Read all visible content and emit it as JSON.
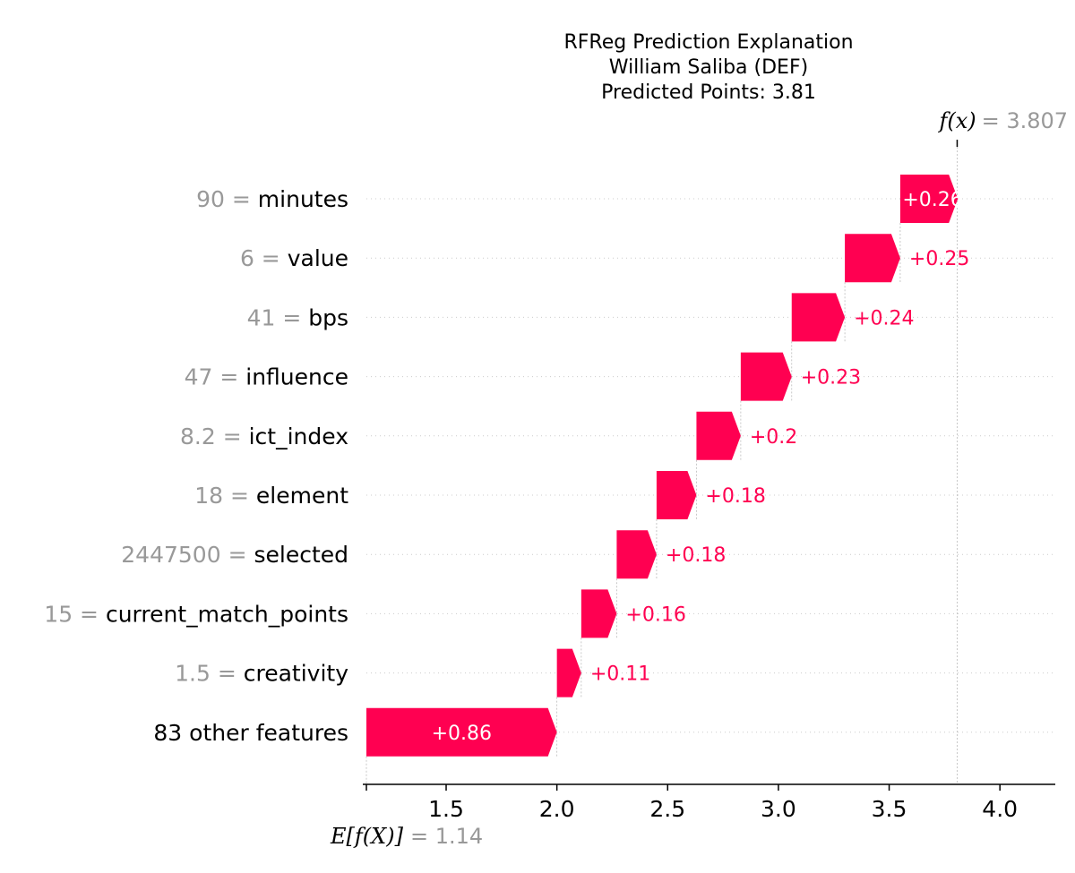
{
  "chart_data": {
    "type": "waterfall",
    "title_lines": [
      "RFReg Prediction Explanation",
      "William Saliba (DEF)",
      "Predicted Points: 3.81"
    ],
    "base_value": 1.14,
    "base_label": "E[f(X)]",
    "base_value_text": "= 1.14",
    "output_value": 3.807,
    "output_label": "f(x)",
    "output_value_text": "= 3.807",
    "xlim": [
      1.14,
      4.25
    ],
    "x_ticks": [
      1.5,
      2.0,
      2.5,
      3.0,
      3.5,
      4.0
    ],
    "x_tick_labels": [
      "1.5",
      "2.0",
      "2.5",
      "3.0",
      "3.5",
      "4.0"
    ],
    "positive_color": "#ff0051",
    "negative_color": "#008bfb",
    "features": [
      {
        "value": "90",
        "name": "minutes",
        "contribution": 0.26,
        "label": "+0.26"
      },
      {
        "value": "6",
        "name": "value",
        "contribution": 0.25,
        "label": "+0.25"
      },
      {
        "value": "41",
        "name": "bps",
        "contribution": 0.24,
        "label": "+0.24"
      },
      {
        "value": "47",
        "name": "influence",
        "contribution": 0.23,
        "label": "+0.23"
      },
      {
        "value": "8.2",
        "name": "ict_index",
        "contribution": 0.2,
        "label": "+0.2"
      },
      {
        "value": "18",
        "name": "element",
        "contribution": 0.18,
        "label": "+0.18"
      },
      {
        "value": "2447500",
        "name": "selected",
        "contribution": 0.18,
        "label": "+0.18"
      },
      {
        "value": "15",
        "name": "current_match_points",
        "contribution": 0.16,
        "label": "+0.16"
      },
      {
        "value": "1.5",
        "name": "creativity",
        "contribution": 0.11,
        "label": "+0.11"
      },
      {
        "value": "",
        "name": "83 other features",
        "contribution": 0.86,
        "label": "+0.86"
      }
    ]
  }
}
